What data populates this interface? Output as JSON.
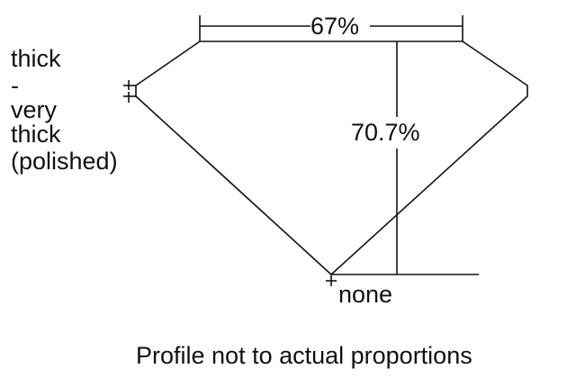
{
  "girdle_label": [
    "thick",
    "-",
    "very",
    "thick",
    "(polished)"
  ],
  "table_label": "67%",
  "depth_label": "70.7%",
  "culet_label": "none",
  "caption": "Profile not to actual proportions",
  "colors": {
    "line": "#111111",
    "background": "#ffffff"
  }
}
